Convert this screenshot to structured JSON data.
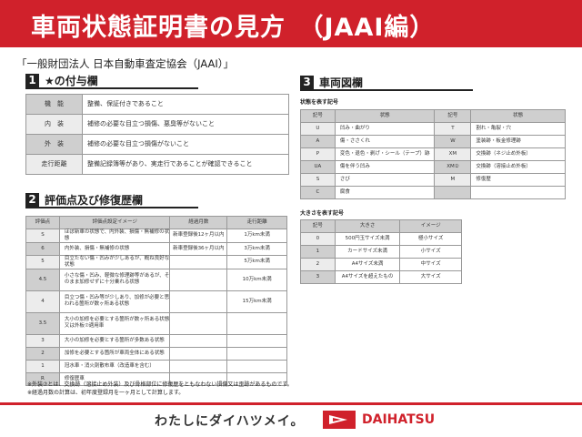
{
  "title": "車両状態証明書の見方　（JAAI編）",
  "organization": "「一般財団法人 日本自動車査定協会（JAAI）」",
  "section1": {
    "num": "1",
    "title": "★の付与欄",
    "rows": [
      {
        "label": "機　能",
        "text": "整備、保証付きであること"
      },
      {
        "label": "内　装",
        "text": "補修の必要な目立つ損傷、悪臭等がないこと"
      },
      {
        "label": "外　装",
        "text": "補修の必要な目立つ損傷がないこと"
      },
      {
        "label": "走行距離",
        "text": "整備記録簿等があり、実走行であることが確認できること"
      }
    ]
  },
  "section2": {
    "num": "2",
    "title": "評価点及び修復歴欄",
    "headers": [
      "評価点",
      "評価点設定イメージ",
      "経過月数",
      "走行距離"
    ],
    "rows": [
      [
        "S",
        "ほぼ新車の状態で、内外装、損傷・無補修の状態",
        "新車登録後12ヶ月以内",
        "1万km未満"
      ],
      [
        "6",
        "内外装、損傷・無補修の状態",
        "新車登録後36ヶ月以内",
        "3万km未満"
      ],
      [
        "5",
        "目立たない傷・凹みが少しあるが、概ね良好な状態",
        "",
        "5万km未満"
      ],
      [
        "4.5",
        "小さな傷・凹み、軽微な修理跡等があるが、そのまま加修せずに十分乗れる状態",
        "",
        "10万km未満"
      ],
      [
        "4",
        "目立つ傷・凹み等が少しあり、加修が必要と思われる箇所が数ヶ所ある状態",
        "",
        "15万km未満"
      ],
      [
        "3.5",
        "大小の加修を必要とする箇所が数ヶ所ある状態又は外板⑦適用車",
        "",
        ""
      ],
      [
        "3",
        "大小の加修を必要とする箇所が多数ある状態",
        "",
        ""
      ],
      [
        "2",
        "加修を必要とする箇所が車両全体にある状態",
        "",
        ""
      ],
      [
        "1",
        "冠水車・消火剤散布車（改造車を含む）",
        "",
        ""
      ],
      [
        "R",
        "修復歴車",
        "",
        ""
      ]
    ],
    "notes": [
      "※外装⑦とは、交換跡（溶接止め外装）及び骨格部位に修復歴をともなわない損傷又は歪跡があるものです。",
      "※経過月数の計算は、初年度登録月を一ヶ月として計算します。"
    ]
  },
  "section3": {
    "num": "3",
    "title": "車両図欄",
    "state_label": "状態を表す記号",
    "state_headers": [
      "記号",
      "状態",
      "記号",
      "状態"
    ],
    "state_rows": [
      [
        "U",
        "凹み・曲がり",
        "T",
        "割れ・亀裂・穴"
      ],
      [
        "A",
        "傷・ささくれ",
        "W",
        "塗装跡・板金修理跡"
      ],
      [
        "P",
        "変色・退色・剥げ・シール（テープ）跡",
        "XM",
        "交換跡（ネジ止め外板）"
      ],
      [
        "UA",
        "傷を伴う凹み",
        "XM②",
        "交換跡（溶接止め外板）"
      ],
      [
        "S",
        "さび",
        "M",
        "修復歴"
      ],
      [
        "C",
        "腐食",
        "",
        ""
      ]
    ],
    "size_label": "大きさを表す記号",
    "size_headers": [
      "記号",
      "大きさ",
      "イメージ"
    ],
    "size_rows": [
      [
        "0",
        "500円玉サイズ未満",
        "極小サイズ"
      ],
      [
        "1",
        "カードサイズ未満",
        "小サイズ"
      ],
      [
        "2",
        "A4サイズ未満",
        "中サイズ"
      ],
      [
        "3",
        "A4サイズを超えたもの",
        "大サイズ"
      ]
    ]
  },
  "footer": {
    "slogan": "わたしにダイハツメイ。",
    "brand": "DAIHATSU",
    "brand_color": "#d0212b"
  }
}
